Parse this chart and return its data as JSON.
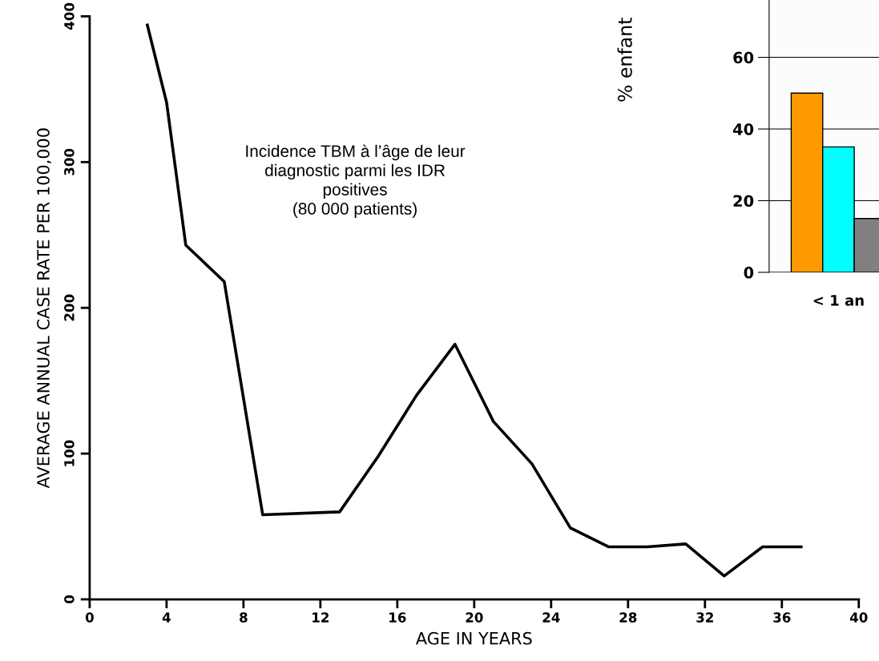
{
  "chart_data": [
    {
      "type": "line",
      "xlabel": "AGE IN YEARS",
      "ylabel": "AVERAGE ANNUAL CASE RATE PER 100,000",
      "x": [
        3,
        4,
        5,
        7,
        9,
        13,
        15,
        17,
        19,
        21,
        23,
        25,
        27,
        29,
        31,
        33,
        35,
        37
      ],
      "series": [
        {
          "color": "#000000",
          "values": [
            394,
            341,
            243,
            218,
            58,
            60,
            98,
            140,
            175,
            122,
            93,
            49,
            36,
            36,
            38,
            16,
            36,
            36
          ]
        }
      ],
      "xlim": [
        0,
        40
      ],
      "xticks": [
        0,
        4,
        8,
        12,
        16,
        20,
        24,
        28,
        32,
        36,
        40
      ],
      "ylim": [
        0,
        400
      ],
      "yticks": [
        0,
        100,
        200,
        300,
        400
      ],
      "grid": false,
      "marker": "none",
      "line_style": "solid",
      "annotations": [
        "Incidence TBM à l’âge de leur\ndiagnostic parmi les IDR\npositives\n(80 000 patients)"
      ]
    },
    {
      "type": "bar",
      "ylabel": "% enfant",
      "categories": [
        "< 1 an"
      ],
      "series": [
        {
          "color": "#ff9900",
          "values": [
            50
          ]
        },
        {
          "color": "#00ffff",
          "values": [
            35
          ]
        },
        {
          "color": "#808080",
          "values": [
            15
          ]
        }
      ],
      "ylim": [
        0,
        76
      ],
      "yticks": [
        0,
        20,
        40,
        60
      ],
      "grid": "y"
    }
  ]
}
